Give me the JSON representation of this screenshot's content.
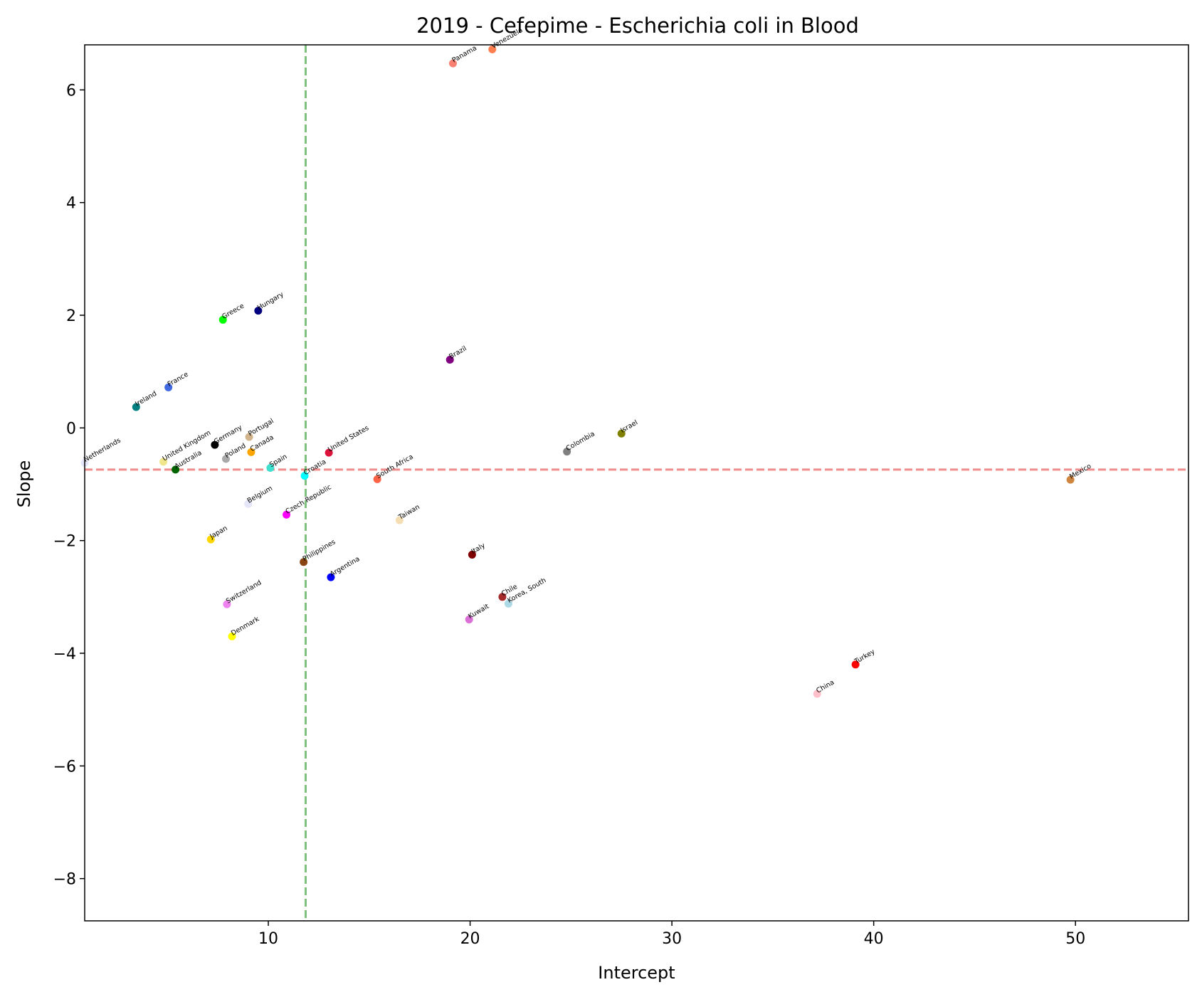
{
  "chart_data": {
    "type": "scatter",
    "title": "2019 - Cefepime - Escherichia coli in Blood",
    "xlabel": "Intercept",
    "ylabel": "Slope",
    "xlim": [
      0.9,
      55.6
    ],
    "ylim": [
      -8.75,
      6.8
    ],
    "xticks": [
      10,
      20,
      30,
      40,
      50
    ],
    "yticks": [
      6,
      4,
      2,
      0,
      -2,
      -4,
      -6,
      -8
    ],
    "xtick_labels": [
      "10",
      "20",
      "30",
      "40",
      "50"
    ],
    "ytick_labels": [
      "6",
      "4",
      "2",
      "0",
      "−2",
      "−4",
      "−6",
      "−8"
    ],
    "grid": false,
    "reference_lines": {
      "vertical_x": 11.85,
      "vertical_color": "#7fc07f",
      "horizontal_y": -0.74,
      "horizontal_color": "#f08c8c"
    },
    "points": [
      {
        "label": "Panama",
        "x": 19.15,
        "y": 6.47,
        "color": "#fa8072"
      },
      {
        "label": "Venezuela",
        "x": 21.1,
        "y": 6.72,
        "color": "#ff7f50"
      },
      {
        "label": "Hungary",
        "x": 9.5,
        "y": 2.08,
        "color": "#000080"
      },
      {
        "label": "Greece",
        "x": 7.75,
        "y": 1.92,
        "color": "#00ff00"
      },
      {
        "label": "Brazil",
        "x": 19.0,
        "y": 1.21,
        "color": "#800080"
      },
      {
        "label": "France",
        "x": 5.05,
        "y": 0.72,
        "color": "#4169e1"
      },
      {
        "label": "Ireland",
        "x": 3.45,
        "y": 0.37,
        "color": "#008080"
      },
      {
        "label": "Germany",
        "x": 7.35,
        "y": -0.3,
        "color": "#000000"
      },
      {
        "label": "Portugal",
        "x": 9.05,
        "y": -0.16,
        "color": "#d2b48c"
      },
      {
        "label": "United Kingdom",
        "x": 4.8,
        "y": -0.6,
        "color": "#f0e68c"
      },
      {
        "label": "Netherlands",
        "x": 0.9,
        "y": -0.62,
        "color": "#e6e6fa"
      },
      {
        "label": "Poland",
        "x": 7.9,
        "y": -0.55,
        "color": "#a9a9a9"
      },
      {
        "label": "Canada",
        "x": 9.15,
        "y": -0.43,
        "color": "#ffa500"
      },
      {
        "label": "United States",
        "x": 13.0,
        "y": -0.44,
        "color": "#dc143c"
      },
      {
        "label": "Australia",
        "x": 5.4,
        "y": -0.74,
        "color": "#006400"
      },
      {
        "label": "Spain",
        "x": 10.1,
        "y": -0.71,
        "color": "#40e0d0"
      },
      {
        "label": "Croatia",
        "x": 11.8,
        "y": -0.85,
        "color": "#00ffff"
      },
      {
        "label": "South Africa",
        "x": 15.4,
        "y": -0.91,
        "color": "#ff6347"
      },
      {
        "label": "Colombia",
        "x": 24.8,
        "y": -0.42,
        "color": "#808080"
      },
      {
        "label": "Israel",
        "x": 27.5,
        "y": -0.1,
        "color": "#808000"
      },
      {
        "label": "Mexico",
        "x": 49.75,
        "y": -0.92,
        "color": "#cd853f"
      },
      {
        "label": "Belgium",
        "x": 9.0,
        "y": -1.35,
        "color": "#e6e6fa"
      },
      {
        "label": "Czech Republic",
        "x": 10.9,
        "y": -1.54,
        "color": "#ff00ff"
      },
      {
        "label": "Taiwan",
        "x": 16.5,
        "y": -1.64,
        "color": "#f5deb3"
      },
      {
        "label": "Japan",
        "x": 7.15,
        "y": -1.98,
        "color": "#ffd700"
      },
      {
        "label": "Italy",
        "x": 20.1,
        "y": -2.25,
        "color": "#800000"
      },
      {
        "label": "Philippines",
        "x": 11.75,
        "y": -2.38,
        "color": "#8b4513"
      },
      {
        "label": "Argentina",
        "x": 13.1,
        "y": -2.65,
        "color": "#0000ff"
      },
      {
        "label": "Chile",
        "x": 21.6,
        "y": -3.0,
        "color": "#a52a2a"
      },
      {
        "label": "Korea, South",
        "x": 21.9,
        "y": -3.12,
        "color": "#add8e6"
      },
      {
        "label": "Switzerland",
        "x": 7.95,
        "y": -3.13,
        "color": "#ee82ee"
      },
      {
        "label": "Kuwait",
        "x": 19.95,
        "y": -3.4,
        "color": "#da70d6"
      },
      {
        "label": "Denmark",
        "x": 8.2,
        "y": -3.7,
        "color": "#ffff00"
      },
      {
        "label": "Turkey",
        "x": 39.1,
        "y": -4.2,
        "color": "#ff0000"
      },
      {
        "label": "China",
        "x": 37.2,
        "y": -4.72,
        "color": "#ffc0cb"
      }
    ]
  }
}
